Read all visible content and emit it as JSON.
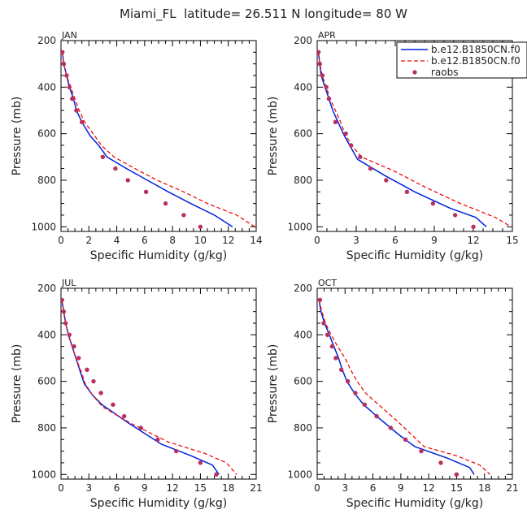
{
  "figure": {
    "title": "Miami_FL  latitude= 26.511 N longitude= 80 W"
  },
  "legend": {
    "entries": [
      {
        "label": "b.e12.B1850CN.f0",
        "style": "solid",
        "color": "#0022dd"
      },
      {
        "label": "b.e12.B1850CN.f0",
        "style": "dashed",
        "color": "#ee1111"
      },
      {
        "label": "raobs",
        "style": "dot",
        "color": "#b83060"
      }
    ]
  },
  "colors": {
    "solid": "#0022dd",
    "dashed": "#ee1111",
    "dots": "#b83060"
  },
  "chart_data": [
    {
      "type": "line",
      "panel_label": "JAN",
      "xlabel": "Specific Humidity (g/kg)",
      "ylabel": "Pressure (mb)",
      "xlim": [
        0,
        14
      ],
      "ylim": [
        1020,
        200
      ],
      "xticks": [
        0,
        2,
        4,
        6,
        8,
        10,
        12,
        14
      ],
      "yticks": [
        200,
        400,
        600,
        800,
        1000
      ],
      "series": [
        {
          "style": "solid",
          "points": [
            [
              0.1,
              250
            ],
            [
              0.2,
              300
            ],
            [
              0.4,
              350
            ],
            [
              0.6,
              400
            ],
            [
              0.9,
              450
            ],
            [
              1.1,
              500
            ],
            [
              1.5,
              550
            ],
            [
              2.1,
              610
            ],
            [
              2.7,
              650
            ],
            [
              3.3,
              700
            ],
            [
              4.7,
              750
            ],
            [
              6.2,
              800
            ],
            [
              7.7,
              850
            ],
            [
              9.3,
              900
            ],
            [
              11.0,
              950
            ],
            [
              12.3,
              1000
            ]
          ]
        },
        {
          "style": "dashed",
          "points": [
            [
              0.1,
              250
            ],
            [
              0.2,
              300
            ],
            [
              0.4,
              350
            ],
            [
              0.7,
              400
            ],
            [
              1.0,
              450
            ],
            [
              1.3,
              500
            ],
            [
              1.7,
              550
            ],
            [
              2.3,
              600
            ],
            [
              2.9,
              650
            ],
            [
              3.8,
              700
            ],
            [
              5.3,
              750
            ],
            [
              6.9,
              800
            ],
            [
              8.8,
              850
            ],
            [
              10.5,
              900
            ],
            [
              12.6,
              950
            ],
            [
              13.9,
              1000
            ]
          ]
        }
      ],
      "raobs": [
        [
          0.1,
          250
        ],
        [
          0.2,
          300
        ],
        [
          0.4,
          350
        ],
        [
          0.6,
          400
        ],
        [
          0.8,
          450
        ],
        [
          1.1,
          500
        ],
        [
          1.5,
          550
        ],
        [
          3.0,
          700
        ],
        [
          3.9,
          750
        ],
        [
          4.8,
          800
        ],
        [
          6.1,
          850
        ],
        [
          7.5,
          900
        ],
        [
          8.8,
          950
        ],
        [
          10.0,
          1000
        ]
      ]
    },
    {
      "type": "line",
      "panel_label": "APR",
      "xlabel": "Specific Humidity (g/kg)",
      "ylabel": "Pressure (mb)",
      "xlim": [
        0,
        15
      ],
      "ylim": [
        1020,
        200
      ],
      "xticks": [
        0,
        3,
        6,
        9,
        12,
        15
      ],
      "yticks": [
        200,
        400,
        600,
        800,
        1000
      ],
      "series": [
        {
          "style": "solid",
          "points": [
            [
              0.1,
              250
            ],
            [
              0.2,
              300
            ],
            [
              0.3,
              350
            ],
            [
              0.6,
              400
            ],
            [
              0.9,
              450
            ],
            [
              1.2,
              500
            ],
            [
              1.6,
              550
            ],
            [
              2.1,
              610
            ],
            [
              2.6,
              660
            ],
            [
              3.1,
              710
            ],
            [
              5.2,
              780
            ],
            [
              7.5,
              850
            ],
            [
              10.2,
              920
            ],
            [
              12.2,
              960
            ],
            [
              13.0,
              1000
            ]
          ]
        },
        {
          "style": "dashed",
          "points": [
            [
              0.1,
              250
            ],
            [
              0.2,
              300
            ],
            [
              0.4,
              350
            ],
            [
              0.7,
              400
            ],
            [
              1.0,
              450
            ],
            [
              1.4,
              500
            ],
            [
              1.8,
              550
            ],
            [
              2.2,
              610
            ],
            [
              2.8,
              660
            ],
            [
              3.4,
              700
            ],
            [
              5.9,
              760
            ],
            [
              8.3,
              830
            ],
            [
              11.0,
              900
            ],
            [
              13.7,
              960
            ],
            [
              14.9,
              1000
            ]
          ]
        }
      ],
      "raobs": [
        [
          0.1,
          250
        ],
        [
          0.2,
          300
        ],
        [
          0.4,
          350
        ],
        [
          0.7,
          400
        ],
        [
          0.9,
          450
        ],
        [
          1.4,
          550
        ],
        [
          2.2,
          600
        ],
        [
          2.6,
          650
        ],
        [
          3.3,
          700
        ],
        [
          4.1,
          750
        ],
        [
          5.3,
          800
        ],
        [
          6.9,
          850
        ],
        [
          8.9,
          900
        ],
        [
          10.6,
          950
        ],
        [
          12.0,
          1000
        ]
      ]
    },
    {
      "type": "line",
      "panel_label": "JUL",
      "xlabel": "Specific Humidity (g/kg)",
      "ylabel": "Pressure (mb)",
      "xlim": [
        0,
        21
      ],
      "ylim": [
        1020,
        200
      ],
      "xticks": [
        0,
        3,
        6,
        9,
        12,
        15,
        18,
        21
      ],
      "yticks": [
        200,
        400,
        600,
        800,
        1000
      ],
      "series": [
        {
          "style": "solid",
          "points": [
            [
              0.1,
              250
            ],
            [
              0.3,
              300
            ],
            [
              0.5,
              350
            ],
            [
              0.8,
              400
            ],
            [
              1.2,
              450
            ],
            [
              1.6,
              500
            ],
            [
              2.0,
              550
            ],
            [
              2.5,
              610
            ],
            [
              3.4,
              660
            ],
            [
              4.4,
              700
            ],
            [
              7.3,
              780
            ],
            [
              10.8,
              870
            ],
            [
              14.0,
              920
            ],
            [
              16.3,
              960
            ],
            [
              17.0,
              1000
            ]
          ]
        },
        {
          "style": "dashed",
          "points": [
            [
              0.1,
              250
            ],
            [
              0.3,
              300
            ],
            [
              0.5,
              350
            ],
            [
              0.8,
              400
            ],
            [
              1.2,
              450
            ],
            [
              1.6,
              500
            ],
            [
              2.1,
              550
            ],
            [
              2.6,
              610
            ],
            [
              3.4,
              660
            ],
            [
              4.5,
              710
            ],
            [
              7.5,
              780
            ],
            [
              11.5,
              860
            ],
            [
              15.5,
              910
            ],
            [
              17.8,
              950
            ],
            [
              18.9,
              1000
            ]
          ]
        }
      ],
      "raobs": [
        [
          0.1,
          250
        ],
        [
          0.3,
          300
        ],
        [
          0.5,
          350
        ],
        [
          0.9,
          400
        ],
        [
          1.4,
          450
        ],
        [
          1.9,
          500
        ],
        [
          2.8,
          550
        ],
        [
          3.5,
          600
        ],
        [
          4.3,
          650
        ],
        [
          5.6,
          700
        ],
        [
          6.8,
          750
        ],
        [
          8.6,
          800
        ],
        [
          10.4,
          850
        ],
        [
          12.4,
          900
        ],
        [
          15.0,
          950
        ],
        [
          16.7,
          1000
        ]
      ]
    },
    {
      "type": "line",
      "panel_label": "OCT",
      "xlabel": "Specific Humidity (g/kg)",
      "ylabel": "Pressure (mb)",
      "xlim": [
        0,
        21
      ],
      "ylim": [
        1020,
        200
      ],
      "xticks": [
        0,
        3,
        6,
        9,
        12,
        15,
        18,
        21
      ],
      "yticks": [
        200,
        400,
        600,
        800,
        1000
      ],
      "series": [
        {
          "style": "solid",
          "points": [
            [
              0.2,
              250
            ],
            [
              0.4,
              300
            ],
            [
              0.8,
              350
            ],
            [
              1.3,
              400
            ],
            [
              1.8,
              450
            ],
            [
              2.3,
              500
            ],
            [
              2.7,
              550
            ],
            [
              3.2,
              600
            ],
            [
              4.0,
              650
            ],
            [
              5.0,
              700
            ],
            [
              6.7,
              760
            ],
            [
              8.8,
              830
            ],
            [
              10.5,
              880
            ],
            [
              14.0,
              930
            ],
            [
              16.4,
              970
            ],
            [
              16.9,
              1000
            ]
          ]
        },
        {
          "style": "dashed",
          "points": [
            [
              0.2,
              250
            ],
            [
              0.5,
              300
            ],
            [
              0.9,
              350
            ],
            [
              1.5,
              400
            ],
            [
              2.2,
              450
            ],
            [
              3.0,
              500
            ],
            [
              3.6,
              550
            ],
            [
              4.3,
              600
            ],
            [
              5.2,
              650
            ],
            [
              6.6,
              700
            ],
            [
              8.6,
              770
            ],
            [
              11.5,
              880
            ],
            [
              15.0,
              920
            ],
            [
              17.5,
              960
            ],
            [
              18.6,
              1000
            ]
          ]
        }
      ],
      "raobs": [
        [
          0.3,
          250
        ],
        [
          0.7,
          350
        ],
        [
          1.1,
          400
        ],
        [
          1.6,
          450
        ],
        [
          2.0,
          500
        ],
        [
          2.6,
          550
        ],
        [
          3.3,
          600
        ],
        [
          4.1,
          650
        ],
        [
          5.1,
          700
        ],
        [
          6.4,
          750
        ],
        [
          7.9,
          800
        ],
        [
          9.5,
          850
        ],
        [
          11.2,
          900
        ],
        [
          13.3,
          950
        ],
        [
          15.0,
          1000
        ]
      ]
    }
  ]
}
